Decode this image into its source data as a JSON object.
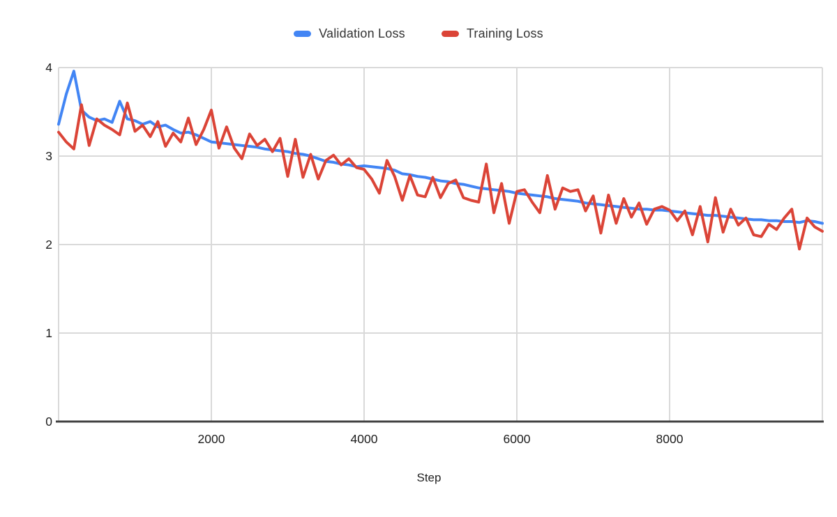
{
  "legend": {
    "items": [
      {
        "label": "Validation Loss",
        "color": "#4285F4"
      },
      {
        "label": "Training Loss",
        "color": "#DB4437"
      }
    ]
  },
  "chart_data": {
    "type": "line",
    "title": "",
    "xlabel": "Step",
    "ylabel": "",
    "xlim": [
      0,
      10000
    ],
    "ylim": [
      0,
      4
    ],
    "xticks_labeled": [
      2000,
      4000,
      6000,
      8000
    ],
    "x_gridlines": [
      0,
      2000,
      4000,
      6000,
      8000,
      10000
    ],
    "yticks": [
      0,
      1,
      2,
      3,
      4
    ],
    "grid": true,
    "legend_position": "top",
    "x": [
      0,
      100,
      200,
      300,
      400,
      500,
      600,
      700,
      800,
      900,
      1000,
      1100,
      1200,
      1300,
      1400,
      1500,
      1600,
      1700,
      1800,
      1900,
      2000,
      2100,
      2200,
      2300,
      2400,
      2500,
      2600,
      2700,
      2800,
      2900,
      3000,
      3100,
      3200,
      3300,
      3400,
      3500,
      3600,
      3700,
      3800,
      3900,
      4000,
      4100,
      4200,
      4300,
      4400,
      4500,
      4600,
      4700,
      4800,
      4900,
      5000,
      5100,
      5200,
      5300,
      5400,
      5500,
      5600,
      5700,
      5800,
      5900,
      6000,
      6100,
      6200,
      6300,
      6400,
      6500,
      6600,
      6700,
      6800,
      6900,
      7000,
      7100,
      7200,
      7300,
      7400,
      7500,
      7600,
      7700,
      7800,
      7900,
      8000,
      8100,
      8200,
      8300,
      8400,
      8500,
      8600,
      8700,
      8800,
      8900,
      9000,
      9100,
      9200,
      9300,
      9400,
      9500,
      9600,
      9700,
      9800,
      9900,
      10000
    ],
    "series": [
      {
        "name": "Validation Loss",
        "color": "#4285F4",
        "values": [
          3.36,
          3.7,
          3.96,
          3.52,
          3.44,
          3.4,
          3.42,
          3.38,
          3.62,
          3.42,
          3.4,
          3.36,
          3.39,
          3.33,
          3.35,
          3.3,
          3.26,
          3.27,
          3.24,
          3.2,
          3.16,
          3.15,
          3.14,
          3.13,
          3.12,
          3.11,
          3.1,
          3.08,
          3.07,
          3.06,
          3.05,
          3.03,
          3.02,
          3.0,
          2.97,
          2.94,
          2.93,
          2.91,
          2.9,
          2.88,
          2.89,
          2.88,
          2.87,
          2.86,
          2.84,
          2.8,
          2.79,
          2.77,
          2.76,
          2.74,
          2.72,
          2.71,
          2.69,
          2.68,
          2.66,
          2.64,
          2.63,
          2.62,
          2.61,
          2.6,
          2.58,
          2.57,
          2.56,
          2.55,
          2.54,
          2.52,
          2.51,
          2.5,
          2.49,
          2.47,
          2.46,
          2.45,
          2.44,
          2.43,
          2.42,
          2.41,
          2.4,
          2.4,
          2.39,
          2.39,
          2.38,
          2.37,
          2.36,
          2.35,
          2.34,
          2.33,
          2.33,
          2.32,
          2.31,
          2.3,
          2.29,
          2.28,
          2.28,
          2.27,
          2.27,
          2.26,
          2.26,
          2.25,
          2.27,
          2.26,
          2.24
        ]
      },
      {
        "name": "Training Loss",
        "color": "#DB4437",
        "values": [
          3.27,
          3.16,
          3.08,
          3.58,
          3.12,
          3.42,
          3.35,
          3.3,
          3.24,
          3.6,
          3.28,
          3.35,
          3.22,
          3.39,
          3.11,
          3.26,
          3.16,
          3.43,
          3.13,
          3.3,
          3.52,
          3.09,
          3.33,
          3.09,
          2.97,
          3.25,
          3.12,
          3.19,
          3.05,
          3.2,
          2.77,
          3.19,
          2.76,
          3.02,
          2.74,
          2.95,
          3.01,
          2.9,
          2.97,
          2.87,
          2.85,
          2.74,
          2.58,
          2.95,
          2.77,
          2.5,
          2.78,
          2.56,
          2.54,
          2.76,
          2.53,
          2.69,
          2.73,
          2.53,
          2.5,
          2.48,
          2.91,
          2.36,
          2.69,
          2.24,
          2.6,
          2.62,
          2.48,
          2.36,
          2.78,
          2.4,
          2.64,
          2.6,
          2.62,
          2.38,
          2.55,
          2.13,
          2.56,
          2.24,
          2.52,
          2.31,
          2.47,
          2.23,
          2.4,
          2.43,
          2.39,
          2.27,
          2.38,
          2.11,
          2.43,
          2.03,
          2.53,
          2.14,
          2.4,
          2.22,
          2.3,
          2.11,
          2.09,
          2.23,
          2.17,
          2.3,
          2.4,
          1.95,
          2.3,
          2.2,
          2.15
        ]
      }
    ]
  }
}
